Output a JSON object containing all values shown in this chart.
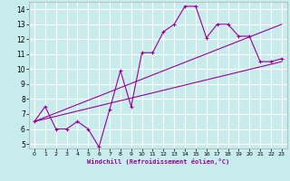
{
  "xlabel": "Windchill (Refroidissement éolien,°C)",
  "ylabel": "",
  "bg_color": "#c8ecec",
  "grid_color": "#ffffff",
  "line_color": "#990099",
  "xlim": [
    -0.5,
    23.5
  ],
  "ylim": [
    4.7,
    14.5
  ],
  "xticks": [
    0,
    1,
    2,
    3,
    4,
    5,
    6,
    7,
    8,
    9,
    10,
    11,
    12,
    13,
    14,
    15,
    16,
    17,
    18,
    19,
    20,
    21,
    22,
    23
  ],
  "yticks": [
    5,
    6,
    7,
    8,
    9,
    10,
    11,
    12,
    13,
    14
  ],
  "data_x": [
    0,
    1,
    2,
    3,
    4,
    5,
    6,
    7,
    8,
    9,
    10,
    11,
    12,
    13,
    14,
    15,
    16,
    17,
    18,
    19,
    20,
    21,
    22,
    23
  ],
  "data_y": [
    6.5,
    7.5,
    6.0,
    6.0,
    6.5,
    6.0,
    4.8,
    7.3,
    9.9,
    7.5,
    11.1,
    11.1,
    12.5,
    13.0,
    14.2,
    14.2,
    12.1,
    13.0,
    13.0,
    12.2,
    12.2,
    10.5,
    10.5,
    10.7
  ],
  "line1_x": [
    0,
    23
  ],
  "line1_y": [
    6.5,
    10.5
  ],
  "line2_x": [
    0,
    23
  ],
  "line2_y": [
    6.5,
    13.0
  ]
}
